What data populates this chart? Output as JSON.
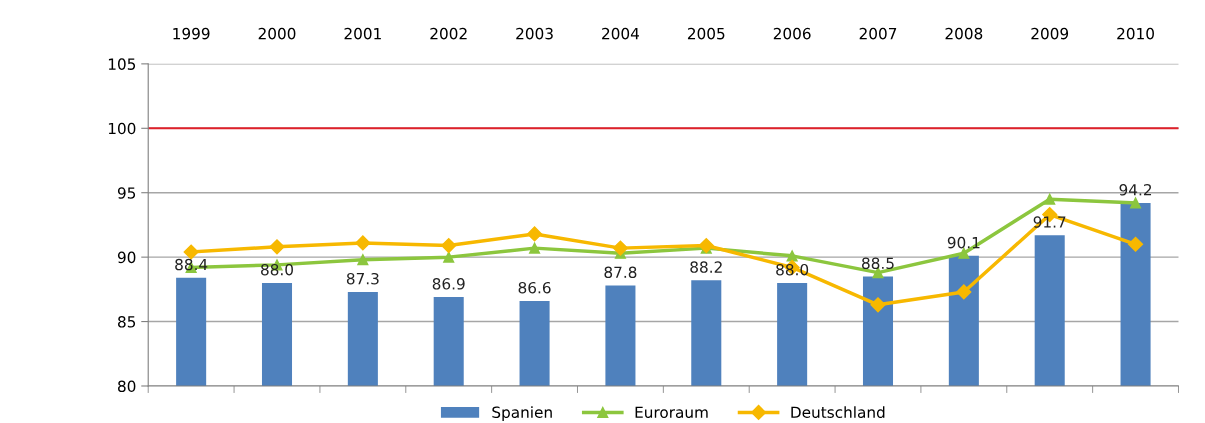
{
  "chart_data": {
    "type": "bar",
    "categories": [
      "1999",
      "2000",
      "2001",
      "2002",
      "2003",
      "2004",
      "2005",
      "2006",
      "2007",
      "2008",
      "2009",
      "2010"
    ],
    "series": [
      {
        "name": "Spanien",
        "color": "#4f81bd",
        "values": [
          88.4,
          88.0,
          87.3,
          86.9,
          86.6,
          87.8,
          88.2,
          88.0,
          88.5,
          90.1,
          91.7,
          94.2
        ],
        "value_labels": [
          "88.4",
          "88.0",
          "87.3",
          "86.9",
          "86.6",
          "87.8",
          "88.2",
          "88.0",
          "88.5",
          "90.1",
          "91.7",
          "94.2"
        ]
      },
      {
        "name": "Euroraum",
        "type": "line",
        "color": "#8cc63e",
        "marker": "triangle",
        "values": [
          89.2,
          89.4,
          89.8,
          90.0,
          90.7,
          90.3,
          90.7,
          90.1,
          88.8,
          90.3,
          94.5,
          94.2
        ]
      },
      {
        "name": "Deutschland",
        "type": "line",
        "color": "#f7b800",
        "marker": "diamond",
        "values": [
          90.4,
          90.8,
          91.1,
          90.9,
          91.8,
          90.7,
          90.9,
          89.2,
          86.3,
          87.3,
          93.3,
          91.0
        ]
      }
    ],
    "ylim": [
      80,
      105
    ],
    "yticks": [
      80,
      85,
      90,
      95,
      100,
      105
    ],
    "ref_lines": [
      {
        "axis": "y",
        "value": 100,
        "color": "#e0202a"
      }
    ],
    "grid": "y",
    "legend": "bottom"
  }
}
